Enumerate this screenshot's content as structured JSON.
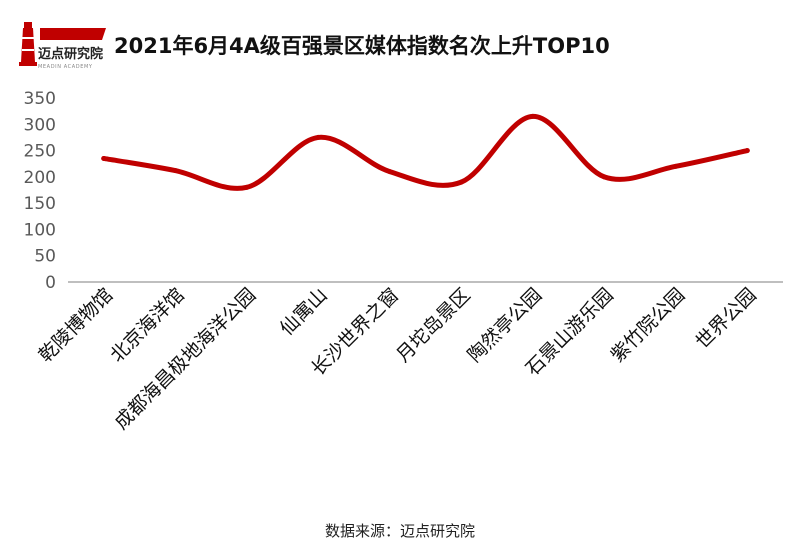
{
  "header": {
    "logo_text": "迈点研究院",
    "logo_subtext": "MEADIN ACADEMY",
    "title": "2021年6月4A级百强景区媒体指数名次上升TOP10"
  },
  "footer": {
    "source": "数据来源：迈点研究院"
  },
  "colors": {
    "line": "#c00000",
    "brand_red": "#c00000",
    "axis_text": "#595959",
    "category_text": "#111111"
  },
  "chart_data": {
    "type": "line",
    "smooth": true,
    "title": "2021年6月4A级百强景区媒体指数名次上升TOP10",
    "xlabel": "",
    "ylabel": "",
    "ylim": [
      0,
      350
    ],
    "yticks": [
      0,
      50,
      100,
      150,
      200,
      250,
      300,
      350
    ],
    "grid": false,
    "legend": "none",
    "categories": [
      "乾陵博物馆",
      "北京海洋馆",
      "成都海昌极地海洋公园",
      "仙寓山",
      "长沙世界之窗",
      "月坨岛景区",
      "陶然亭公园",
      "石景山游乐园",
      "紫竹院公园",
      "世界公园"
    ],
    "series": [
      {
        "values": [
          235,
          212,
          180,
          275,
          210,
          190,
          315,
          200,
          220,
          250
        ]
      }
    ]
  }
}
